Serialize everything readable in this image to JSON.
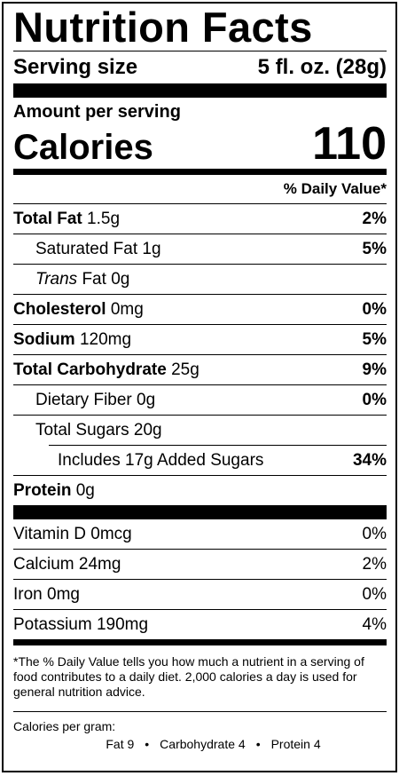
{
  "title": "Nutrition Facts",
  "serving": {
    "label": "Serving size",
    "value": "5 fl. oz. (28g)"
  },
  "amount_per_serving": "Amount per serving",
  "calories": {
    "label": "Calories",
    "value": "110"
  },
  "daily_value_header": "% Daily Value*",
  "nutrients": {
    "total_fat": {
      "name": "Total Fat",
      "amount": "1.5g",
      "dv": "2%"
    },
    "saturated_fat": {
      "name": "Saturated Fat",
      "amount": "1g",
      "dv": "5%"
    },
    "trans_fat": {
      "name_italic": "Trans",
      "name": "Fat",
      "amount": "0g"
    },
    "cholesterol": {
      "name": "Cholesterol",
      "amount": "0mg",
      "dv": "0%"
    },
    "sodium": {
      "name": "Sodium",
      "amount": "120mg",
      "dv": "5%"
    },
    "total_carb": {
      "name": "Total Carbohydrate",
      "amount": "25g",
      "dv": "9%"
    },
    "dietary_fiber": {
      "name": "Dietary Fiber",
      "amount": "0g",
      "dv": "0%"
    },
    "total_sugars": {
      "name": "Total Sugars",
      "amount": "20g"
    },
    "added_sugars": {
      "text": "Includes 17g Added Sugars",
      "dv": "34%"
    },
    "protein": {
      "name": "Protein",
      "amount": "0g"
    }
  },
  "vitamins": [
    {
      "name": "Vitamin D 0mcg",
      "dv": "0%"
    },
    {
      "name": "Calcium 24mg",
      "dv": "2%"
    },
    {
      "name": "Iron 0mg",
      "dv": "0%"
    },
    {
      "name": "Potassium 190mg",
      "dv": "4%"
    }
  ],
  "footnote": "*The % Daily Value tells you how much a nutrient in a serving of food contributes to a daily diet. 2,000 calories a day is used for general nutrition advice.",
  "calories_per_gram": {
    "label": "Calories per gram:",
    "fat": "Fat 9",
    "carbohydrate": "Carbohydrate 4",
    "protein": "Protein 4",
    "separator": "•"
  }
}
